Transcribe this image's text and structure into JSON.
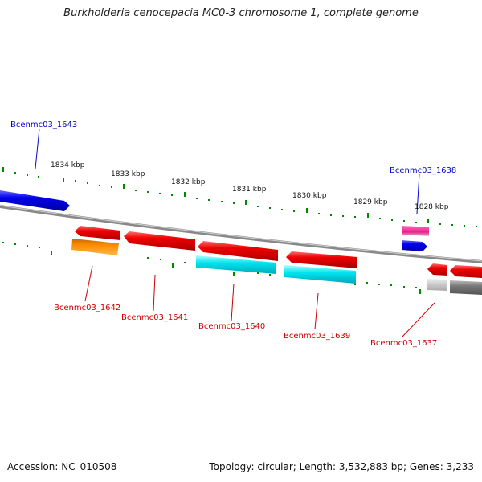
{
  "title": "Burkholderia cenocepacia MC0-3 chromosome 1, complete genome",
  "footer": {
    "accession": "Accession: NC_010508",
    "info": "Topology: circular; Length: 3,532,883 bp; Genes: 3,233"
  },
  "scale_labels": [
    "1834 kbp",
    "1833 kbp",
    "1832 kbp",
    "1831 kbp",
    "1830 kbp",
    "1829 kbp",
    "1828 kbp"
  ],
  "gene_labels": {
    "bcenmc03_1643": "Bcenmc03_1643",
    "bcenmc03_1638": "Bcenmc03_1638",
    "bcenmc03_1642": "Bcenmc03_1642",
    "bcenmc03_1641": "Bcenmc03_1641",
    "bcenmc03_1640": "Bcenmc03_1640",
    "bcenmc03_1639": "Bcenmc03_1639",
    "bcenmc03_1637": "Bcenmc03_1637"
  },
  "colors": {
    "forward_label": "#0000cc",
    "reverse_label": "#cc0000",
    "gene_red": "#ee0000",
    "gene_blue": "#0000ee",
    "gene_cyan": "#00e5f0",
    "gene_orange": "#ff8c00",
    "gene_magenta": "#ee1c8c",
    "gene_gray": "#777777",
    "gene_lightgray": "#c8c8c8",
    "tick_green": "#008800",
    "backbone": "#888888"
  }
}
